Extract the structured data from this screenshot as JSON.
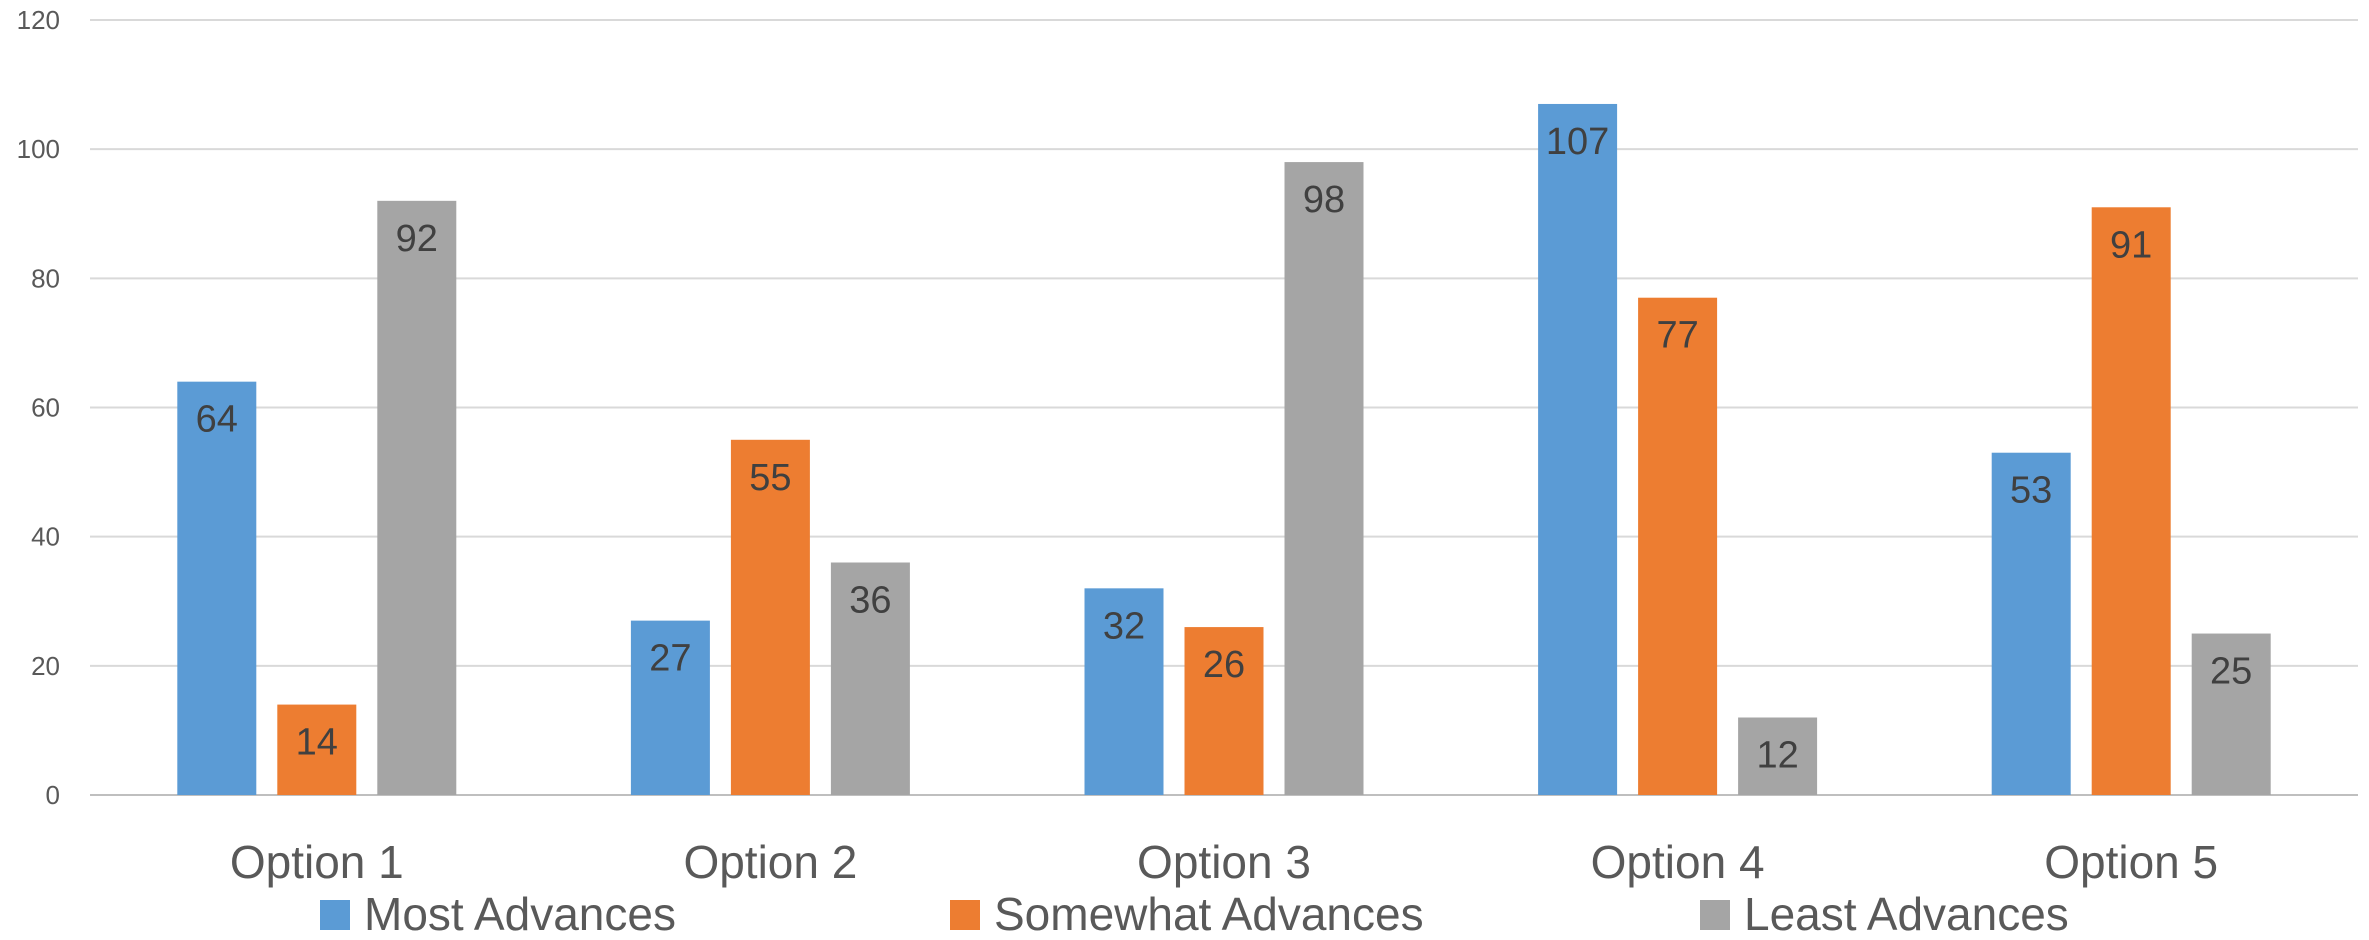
{
  "chart_data": {
    "type": "bar",
    "categories": [
      "Option 1",
      "Option 2",
      "Option 3",
      "Option 4",
      "Option 5"
    ],
    "series": [
      {
        "name": "Most Advances",
        "color": "#5b9bd5",
        "values": [
          64,
          27,
          32,
          107,
          53
        ]
      },
      {
        "name": "Somewhat Advances",
        "color": "#ed7d31",
        "values": [
          14,
          55,
          26,
          77,
          91
        ]
      },
      {
        "name": "Least Advances",
        "color": "#a5a5a5",
        "values": [
          92,
          36,
          98,
          12,
          25
        ]
      }
    ],
    "ylim": [
      0,
      120
    ],
    "yticks": [
      "0",
      "20",
      "40",
      "60",
      "80",
      "100",
      "120"
    ],
    "grid": true,
    "legend": "bottom",
    "data_labels": "inside-end"
  }
}
